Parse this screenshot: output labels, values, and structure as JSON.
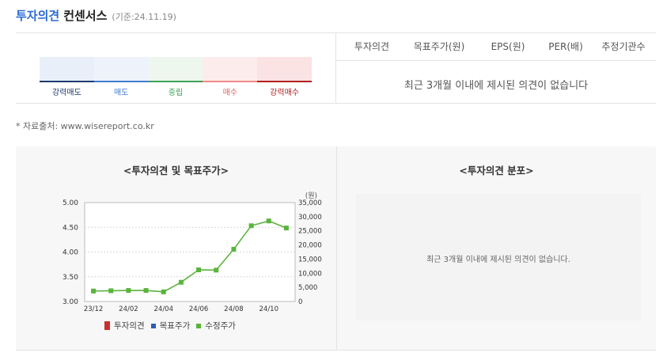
{
  "header": {
    "accent": "투자의견",
    "title": "컨센서스",
    "date": "(기준:24.11.19)"
  },
  "scale": [
    {
      "label": "강력매도",
      "bg": "#e8eff9",
      "line": "#1f3a6e",
      "text": "#1f3a6e"
    },
    {
      "label": "매도",
      "bg": "#eef3fb",
      "line": "#3f7cd1",
      "text": "#3f7cd1"
    },
    {
      "label": "중립",
      "bg": "#eef7ee",
      "line": "#3ea055",
      "text": "#3ea055"
    },
    {
      "label": "매수",
      "bg": "#fdecec",
      "line": "#f08a8a",
      "text": "#e06060"
    },
    {
      "label": "강력매수",
      "bg": "#fbe3e3",
      "line": "#b02020",
      "text": "#b02020"
    }
  ],
  "table": {
    "headers": [
      "투자의견",
      "목표주가(원)",
      "EPS(원)",
      "PER(배)",
      "추정기관수"
    ],
    "empty_msg": "최근 3개월 이내에 제시된 의견이 없습니다"
  },
  "source": "* 자료출처: www.wisereport.co.kr",
  "opinion_chart": {
    "title": "<투자의견 및 목표주가>",
    "legend": [
      "투자의견",
      "목표주가",
      "수정주가"
    ],
    "colors": {
      "opinion": "#c8302d",
      "target": "#2e5db3",
      "price": "#5ab43c"
    }
  },
  "distribution": {
    "title": "<투자의견 분포>",
    "empty_msg": "최근 3개월 이내에 제시된 의견이 없습니다."
  },
  "chart_data": {
    "type": "line",
    "x": [
      "23/12",
      "24/01",
      "24/02",
      "24/03",
      "24/04",
      "24/05",
      "24/06",
      "24/07",
      "24/08",
      "24/09",
      "24/10",
      "24/11"
    ],
    "x_tick_labels": [
      "23/12",
      "24/02",
      "24/04",
      "24/06",
      "24/08",
      "24/10"
    ],
    "series": [
      {
        "name": "수정주가",
        "values": [
          3700,
          3800,
          3900,
          3900,
          3400,
          6800,
          11200,
          11100,
          18500,
          26800,
          28500,
          26000
        ]
      }
    ],
    "y_left": {
      "ticks": [
        "5.00",
        "4.50",
        "4.00",
        "3.50",
        "3.00"
      ],
      "range": [
        3,
        5
      ]
    },
    "y_right": {
      "unit": "(원)",
      "ticks": [
        "35,000",
        "30,000",
        "25,000",
        "20,000",
        "15,000",
        "10,000",
        "5,000",
        "0"
      ],
      "range": [
        0,
        35000
      ]
    },
    "grid": true
  }
}
